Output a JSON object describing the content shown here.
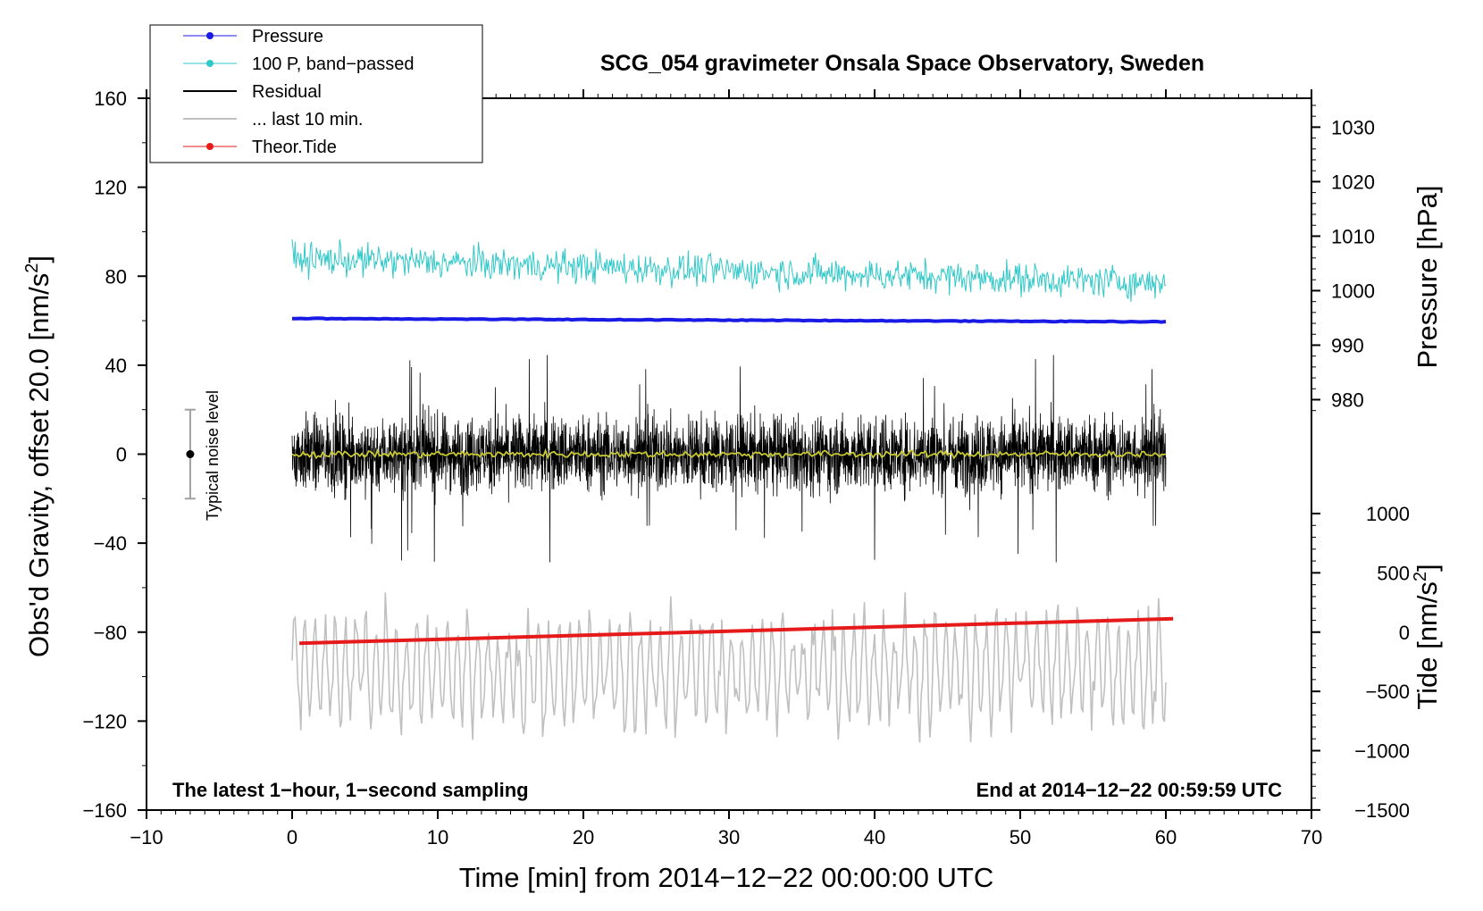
{
  "chart_data": {
    "type": "line",
    "title": "SCG_054 gravimeter Onsala Space Observatory, Sweden",
    "xlabel": "Time [min] from 2014−12−22 00:00:00 UTC",
    "ylabel_left_main": "Obs'd Gravity, offset 20.0 [nm/s",
    "ylabel_left_sup": "2",
    "ylabel_left_end": "]",
    "ylabel_right_top": "Pressure [hPa]",
    "ylabel_right_bottom_main": "Tide [nm/s",
    "ylabel_right_bottom_sup": "2",
    "ylabel_right_bottom_end": "]",
    "xlim": [
      -10,
      70
    ],
    "ylim": [
      -160,
      160
    ],
    "x_ticks": [
      -10,
      0,
      10,
      20,
      30,
      40,
      50,
      60,
      70
    ],
    "x_tick_labels": [
      "−10",
      "0",
      "10",
      "20",
      "30",
      "40",
      "50",
      "60",
      "70"
    ],
    "y_ticks": [
      160,
      120,
      80,
      40,
      0,
      -40,
      -80,
      -120,
      -160
    ],
    "y_tick_labels": [
      "160",
      "120",
      "80",
      "40",
      "0",
      "−40",
      "−80",
      "−120",
      "−160"
    ],
    "pressure_ticks": [
      1030,
      1020,
      1010,
      1000,
      990,
      980
    ],
    "pressure_axis_map": {
      "ref_hpa": 1000,
      "ref_gravity": 73.5,
      "gravity_per_hpa": 2.45
    },
    "tide_ticks": [
      1000,
      500,
      0,
      -500,
      -1000,
      -1500
    ],
    "tide_tick_labels": [
      "1000",
      "500",
      "0",
      "−500",
      "−1000",
      "−1500"
    ],
    "tide_axis_map": {
      "ref_tide": 0,
      "ref_gravity": -80.0,
      "gravity_per_tide": 0.0533
    },
    "annotation_left": "The latest 1−hour, 1−second sampling",
    "annotation_right": "End at 2014−12−22 00:59:59 UTC",
    "noise_label": "Typical noise level",
    "noise_marker": {
      "x": -7,
      "y": 0,
      "err": 20
    },
    "legend": [
      {
        "label": "Pressure",
        "color": "#1a1ae6",
        "style": "line-dot"
      },
      {
        "label": "100 P, band−passed",
        "color": "#30c8c8",
        "style": "line-dot"
      },
      {
        "label": "Residual",
        "color": "#000000",
        "style": "line"
      },
      {
        "label": "... last 10 min.",
        "color": "#c0c0c0",
        "style": "line"
      },
      {
        "label": "Theor.Tide",
        "color": "#e61a1a",
        "style": "line-dot"
      }
    ],
    "series": [
      {
        "name": "Pressure",
        "color": "#1a1ae6",
        "x_range": [
          0,
          60
        ],
        "start": 61.0,
        "end": 59.5,
        "noise_amp": 0.3
      },
      {
        "name": "100 P, band−passed",
        "color": "#30c8c8",
        "x_range": [
          0,
          60
        ],
        "start": 88,
        "end": 77,
        "noise_amp": 6
      },
      {
        "name": "Residual",
        "color": "#000000",
        "x_range": [
          0,
          60
        ],
        "center": 0,
        "noise_amp": 15,
        "spike_max": 53,
        "spike_min": -50
      },
      {
        "name": "Residual smoothed",
        "color": "#c8c832",
        "x_range": [
          0,
          60
        ],
        "center": 0,
        "noise_amp": 1.5
      },
      {
        "name": "... last 10 min.",
        "color": "#c0c0c0",
        "x_range": [
          0,
          60
        ],
        "center": -97,
        "noise_amp": 20,
        "max": -58,
        "min": -145
      },
      {
        "name": "Theor.Tide",
        "color": "#e61a1a",
        "x_range": [
          0.5,
          60.5
        ],
        "start": -85,
        "end": -74
      }
    ]
  }
}
